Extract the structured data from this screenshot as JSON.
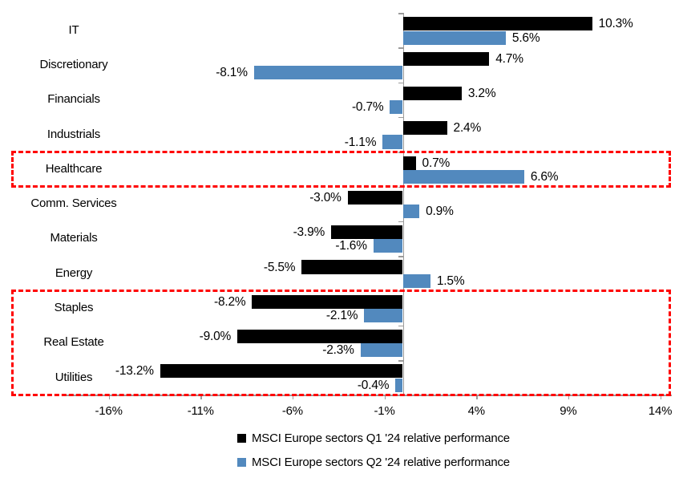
{
  "chart_data": {
    "type": "bar",
    "orientation": "horizontal",
    "title": "",
    "categories": [
      "IT",
      "Discretionary",
      "Financials",
      "Industrials",
      "Healthcare",
      "Comm. Services",
      "Materials",
      "Energy",
      "Staples",
      "Real Estate",
      "Utilities"
    ],
    "series": [
      {
        "name": "MSCI Europe sectors Q1 '24 relative performance",
        "color": "#000000",
        "values": [
          10.3,
          4.7,
          3.2,
          2.4,
          0.7,
          -3.0,
          -3.9,
          -5.5,
          -8.2,
          -9.0,
          -13.2
        ],
        "labels": [
          "10.3%",
          "4.7%",
          "3.2%",
          "2.4%",
          "0.7%",
          "-3.0%",
          "-3.9%",
          "-5.5%",
          "-8.2%",
          "-9.0%",
          "-13.2%"
        ]
      },
      {
        "name": "MSCI Europe sectors Q2 '24 relative performance",
        "color": "#5289BE",
        "values": [
          5.6,
          -8.1,
          -0.7,
          -1.1,
          6.6,
          0.9,
          -1.6,
          1.5,
          -2.1,
          -2.3,
          -0.4
        ],
        "labels": [
          "5.6%",
          "-8.1%",
          "-0.7%",
          "-1.1%",
          "6.6%",
          "0.9%",
          "-1.6%",
          "1.5%",
          "-2.1%",
          "-2.3%",
          "-0.4%"
        ]
      }
    ],
    "x_ticks": [
      {
        "label": "-16%",
        "value": -16
      },
      {
        "label": "-11%",
        "value": -11
      },
      {
        "label": "-6%",
        "value": -6
      },
      {
        "label": "-1%",
        "value": -1
      },
      {
        "label": "4%",
        "value": 4
      },
      {
        "label": "9%",
        "value": 9
      },
      {
        "label": "14%",
        "value": 14
      }
    ],
    "xlim": [
      -18.6,
      14.6
    ],
    "grid": false,
    "legend_position": "bottom",
    "axis_color": "#9b9b9b",
    "highlight_boxes": [
      {
        "categories": [
          "Healthcare"
        ],
        "color": "#FF0000"
      },
      {
        "categories": [
          "Staples",
          "Real Estate",
          "Utilities"
        ],
        "color": "#FF0000"
      }
    ]
  }
}
